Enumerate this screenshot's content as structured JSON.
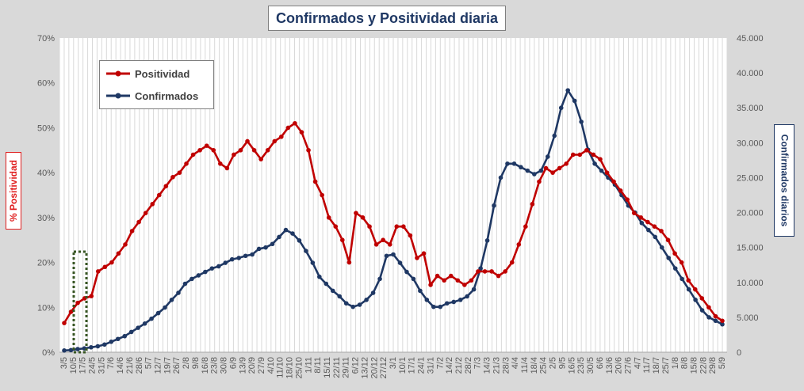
{
  "chart_data": {
    "type": "line",
    "title": "Confirmados  y Positividad  diaria",
    "ylabel_left": "% Positividad",
    "ylabel_right": "Confirmados diarios",
    "y_left_ticks": [
      "0%",
      "10%",
      "20%",
      "30%",
      "40%",
      "50%",
      "60%",
      "70%"
    ],
    "y_left_range": [
      0,
      70
    ],
    "y_right_ticks": [
      "0",
      "5.000",
      "10.000",
      "15.000",
      "20.000",
      "25.000",
      "30.000",
      "35.000",
      "40.000",
      "45.000"
    ],
    "y_right_range": [
      0,
      45000
    ],
    "x_tick_labels": [
      "3/5",
      "10/5",
      "17/5",
      "24/5",
      "31/5",
      "7/6",
      "14/6",
      "21/6",
      "28/6",
      "5/7",
      "12/7",
      "19/7",
      "26/7",
      "2/8",
      "9/8",
      "16/8",
      "23/8",
      "30/8",
      "6/9",
      "13/9",
      "20/9",
      "27/9",
      "4/10",
      "11/10",
      "18/10",
      "25/10",
      "1/11",
      "8/11",
      "15/11",
      "22/11",
      "29/11",
      "6/12",
      "13/12",
      "20/12",
      "27/12",
      "3/1",
      "10/1",
      "17/1",
      "24/1",
      "31/1",
      "7/2",
      "14/2",
      "21/2",
      "28/2",
      "7/3",
      "14/3",
      "21/3",
      "28/3",
      "4/4",
      "11/4",
      "18/4",
      "25/4",
      "2/5",
      "9/5",
      "16/5",
      "23/5",
      "30/5",
      "6/6",
      "13/6",
      "20/6",
      "27/6",
      "4/7",
      "11/7",
      "18/7",
      "25/7",
      "1/8",
      "8/8",
      "15/8",
      "22/8",
      "29/8",
      "5/9"
    ],
    "legend_position": "top-left",
    "grid": "vertical",
    "series": [
      {
        "name": "Positividad",
        "axis": "left",
        "color": "#c00000",
        "values": [
          6.5,
          9,
          11,
          12,
          12.5,
          18,
          19,
          20,
          22,
          24,
          27,
          29,
          31,
          33,
          35,
          37,
          39,
          40,
          42,
          44,
          45,
          46,
          45,
          42,
          41,
          44,
          45,
          47,
          45,
          43,
          45,
          47,
          48,
          50,
          51,
          49,
          45,
          38,
          35,
          30,
          28,
          25,
          20,
          31,
          30,
          28,
          24,
          25,
          24,
          28,
          28,
          26,
          21,
          22,
          15,
          17,
          16,
          17,
          16,
          15,
          16,
          18,
          18,
          18,
          17,
          18,
          20,
          24,
          28,
          33,
          38,
          41,
          40,
          41,
          42,
          44,
          44,
          45,
          44,
          43,
          40,
          38,
          36,
          34,
          31,
          30,
          29,
          28,
          27,
          25,
          22,
          20,
          16,
          14,
          12,
          10,
          8,
          7
        ]
      },
      {
        "name": "Confirmados",
        "axis": "right",
        "color": "#1f3864",
        "values": [
          250,
          300,
          450,
          550,
          700,
          850,
          1100,
          1500,
          1900,
          2300,
          2900,
          3500,
          4100,
          4800,
          5600,
          6400,
          7500,
          8500,
          9800,
          10500,
          11000,
          11500,
          12000,
          12300,
          12800,
          13300,
          13500,
          13800,
          14000,
          14800,
          15000,
          15500,
          16500,
          17500,
          17000,
          16000,
          14500,
          12800,
          10800,
          9800,
          8800,
          8000,
          7000,
          6500,
          6800,
          7500,
          8500,
          10500,
          13800,
          14000,
          12800,
          11500,
          10500,
          8800,
          7500,
          6500,
          6500,
          7000,
          7200,
          7500,
          8000,
          9000,
          12000,
          16000,
          21000,
          25000,
          27000,
          27000,
          26500,
          26000,
          25500,
          26000,
          28000,
          31000,
          35000,
          37500,
          36000,
          33000,
          29000,
          27000,
          26000,
          25000,
          24000,
          22500,
          21000,
          20000,
          18500,
          17500,
          16500,
          15000,
          13500,
          12000,
          10500,
          9000,
          7500,
          6000,
          5000,
          4500,
          4000
        ]
      }
    ],
    "highlight_marker": "dotted-rectangle"
  }
}
